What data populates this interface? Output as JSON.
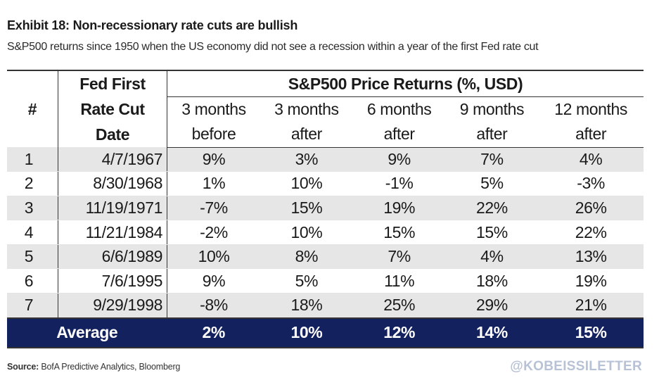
{
  "title": "Exhibit 18: Non-recessionary rate cuts are bullish",
  "subtitle": "S&P500 returns since 1950 when the US economy did not see a recession within a year of the first Fed rate cut",
  "source_label": "Source:",
  "source_text": "BofA Predictive Analytics, Bloomberg",
  "watermark": "@KOBEISSILETTER",
  "colors": {
    "average_row_bg": "#14215f",
    "stripe": "#e6e6e6"
  },
  "chart_data": {
    "type": "table",
    "header": {
      "num": "#",
      "date_lines": [
        "Fed First",
        "Rate Cut",
        "Date"
      ],
      "group": "S&P500 Price Returns (%, USD)",
      "columns": [
        [
          "3 months",
          "before"
        ],
        [
          "3 months",
          "after"
        ],
        [
          "6 months",
          "after"
        ],
        [
          "9 months",
          "after"
        ],
        [
          "12 months",
          "after"
        ]
      ]
    },
    "rows": [
      {
        "num": "1",
        "date": "4/7/1967",
        "values": [
          "9%",
          "3%",
          "9%",
          "7%",
          "4%"
        ]
      },
      {
        "num": "2",
        "date": "8/30/1968",
        "values": [
          "1%",
          "10%",
          "-1%",
          "5%",
          "-3%"
        ]
      },
      {
        "num": "3",
        "date": "11/19/1971",
        "values": [
          "-7%",
          "15%",
          "19%",
          "22%",
          "26%"
        ]
      },
      {
        "num": "4",
        "date": "11/21/1984",
        "values": [
          "-2%",
          "10%",
          "15%",
          "15%",
          "22%"
        ]
      },
      {
        "num": "5",
        "date": "6/6/1989",
        "values": [
          "10%",
          "8%",
          "7%",
          "4%",
          "13%"
        ]
      },
      {
        "num": "6",
        "date": "7/6/1995",
        "values": [
          "9%",
          "5%",
          "11%",
          "18%",
          "19%"
        ]
      },
      {
        "num": "7",
        "date": "9/29/1998",
        "values": [
          "-8%",
          "18%",
          "25%",
          "29%",
          "21%"
        ]
      }
    ],
    "average": {
      "label": "Average",
      "values": [
        "2%",
        "10%",
        "12%",
        "14%",
        "15%"
      ]
    }
  }
}
